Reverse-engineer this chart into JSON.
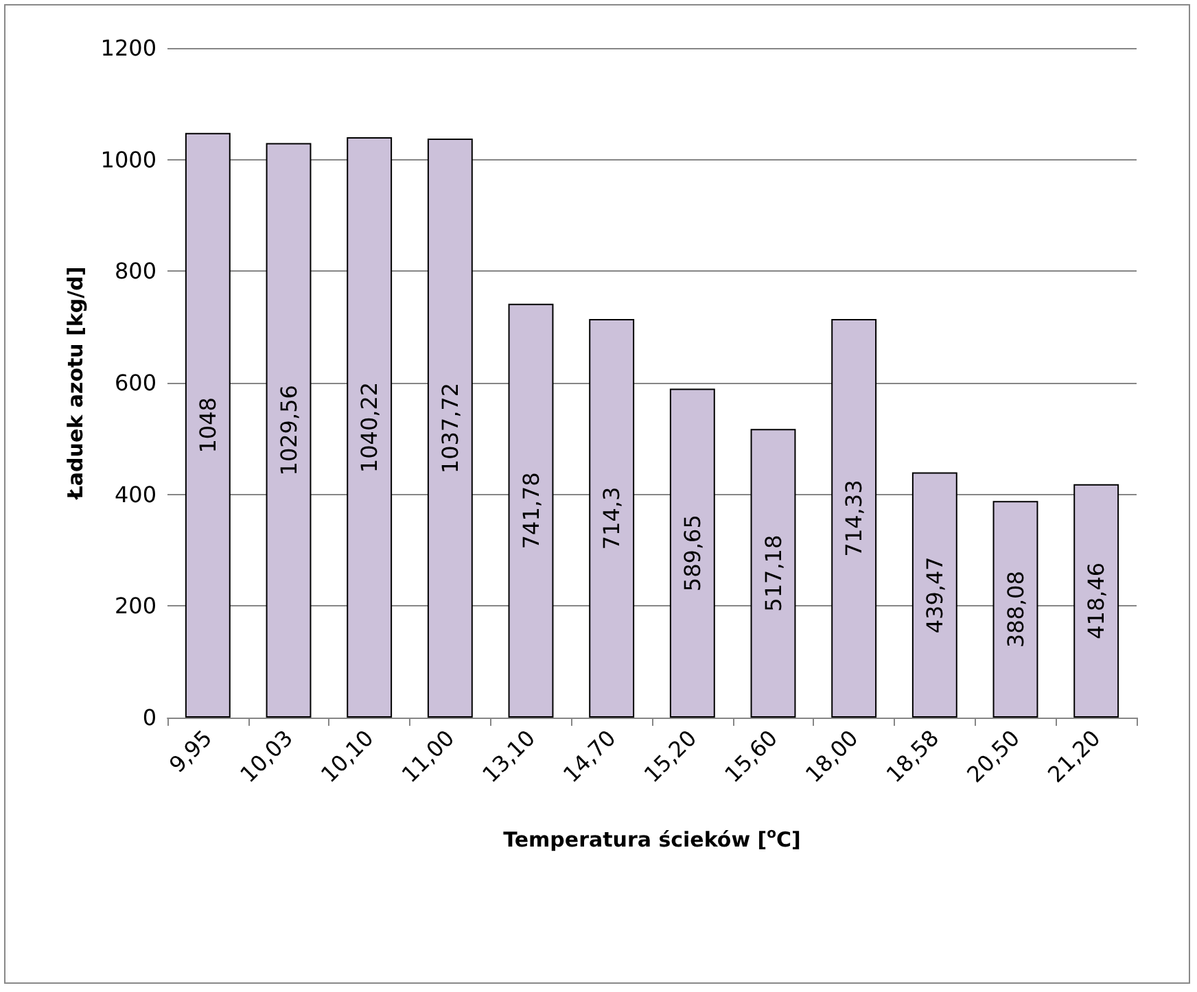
{
  "chart_data": {
    "type": "bar",
    "xlabel": "Temperatura ścieków [$^{o}$C]",
    "ylabel": "Ładuek azotu [kg/d]",
    "categories": [
      "9,95",
      "10,03",
      "10,10",
      "11,00",
      "13,10",
      "14,70",
      "15,20",
      "15,60",
      "18,00",
      "18,58",
      "20,50",
      "21,20"
    ],
    "values": [
      1048,
      1029.56,
      1040.22,
      1037.72,
      741.78,
      714.3,
      589.65,
      517.18,
      714.33,
      439.47,
      388.08,
      418.46
    ],
    "value_labels": [
      "1048",
      "1029,56",
      "1040,22",
      "1037,72",
      "741,78",
      "714,3",
      "589,65",
      "517,18",
      "714,33",
      "439,47",
      "388,08",
      "418,46"
    ],
    "color": "#ccc1da",
    "ylim": [
      0,
      1200
    ],
    "yticks": [
      0,
      200,
      400,
      600,
      800,
      1000,
      1200
    ],
    "grid": "y"
  }
}
